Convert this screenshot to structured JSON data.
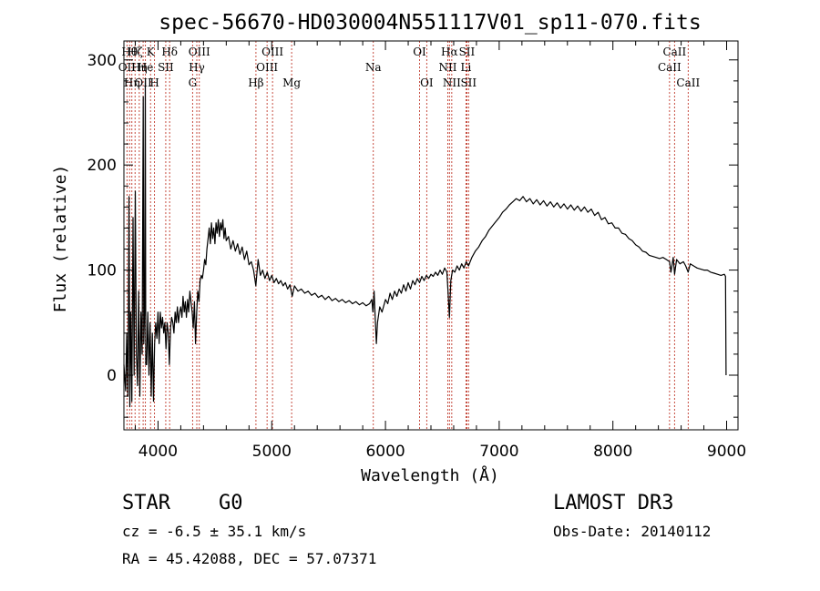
{
  "chart_data": {
    "type": "line",
    "title": "spec-56670-HD030004N551117V01_sp11-070.fits",
    "xlabel": "Wavelength (Å)",
    "ylabel": "Flux (relative)",
    "xlim": [
      3700,
      9100
    ],
    "ylim": [
      -52,
      318
    ],
    "xticks": [
      4000,
      5000,
      6000,
      7000,
      8000,
      9000
    ],
    "yticks": [
      0,
      100,
      200,
      300
    ],
    "series": [
      {
        "name": "flux",
        "points": [
          [
            3700,
            10
          ],
          [
            3715,
            -15
          ],
          [
            3725,
            40
          ],
          [
            3735,
            -20
          ],
          [
            3745,
            170
          ],
          [
            3752,
            -30
          ],
          [
            3760,
            60
          ],
          [
            3770,
            -25
          ],
          [
            3780,
            150
          ],
          [
            3790,
            0
          ],
          [
            3800,
            175
          ],
          [
            3810,
            20
          ],
          [
            3820,
            -10
          ],
          [
            3830,
            80
          ],
          [
            3840,
            -20
          ],
          [
            3850,
            60
          ],
          [
            3860,
            20
          ],
          [
            3870,
            265
          ],
          [
            3875,
            30
          ],
          [
            3882,
            60
          ],
          [
            3888,
            280
          ],
          [
            3892,
            10
          ],
          [
            3900,
            10
          ],
          [
            3910,
            60
          ],
          [
            3920,
            0
          ],
          [
            3930,
            50
          ],
          [
            3940,
            -20
          ],
          [
            3950,
            40
          ],
          [
            3960,
            -25
          ],
          [
            3970,
            30
          ],
          [
            3980,
            50
          ],
          [
            3990,
            35
          ],
          [
            4000,
            60
          ],
          [
            4010,
            30
          ],
          [
            4020,
            60
          ],
          [
            4030,
            45
          ],
          [
            4040,
            55
          ],
          [
            4050,
            40
          ],
          [
            4060,
            50
          ],
          [
            4070,
            25
          ],
          [
            4080,
            50
          ],
          [
            4090,
            40
          ],
          [
            4100,
            10
          ],
          [
            4110,
            45
          ],
          [
            4120,
            55
          ],
          [
            4130,
            50
          ],
          [
            4140,
            40
          ],
          [
            4150,
            60
          ],
          [
            4160,
            50
          ],
          [
            4170,
            65
          ],
          [
            4180,
            50
          ],
          [
            4190,
            60
          ],
          [
            4200,
            65
          ],
          [
            4210,
            55
          ],
          [
            4220,
            75
          ],
          [
            4230,
            60
          ],
          [
            4240,
            70
          ],
          [
            4250,
            55
          ],
          [
            4260,
            72
          ],
          [
            4270,
            60
          ],
          [
            4280,
            80
          ],
          [
            4290,
            70
          ],
          [
            4300,
            60
          ],
          [
            4310,
            45
          ],
          [
            4320,
            70
          ],
          [
            4330,
            30
          ],
          [
            4340,
            60
          ],
          [
            4350,
            80
          ],
          [
            4360,
            70
          ],
          [
            4370,
            90
          ],
          [
            4380,
            95
          ],
          [
            4390,
            92
          ],
          [
            4400,
            100
          ],
          [
            4410,
            110
          ],
          [
            4420,
            105
          ],
          [
            4430,
            120
          ],
          [
            4440,
            130
          ],
          [
            4450,
            140
          ],
          [
            4460,
            125
          ],
          [
            4470,
            145
          ],
          [
            4480,
            130
          ],
          [
            4490,
            140
          ],
          [
            4500,
            125
          ],
          [
            4510,
            145
          ],
          [
            4520,
            135
          ],
          [
            4530,
            148
          ],
          [
            4540,
            132
          ],
          [
            4550,
            145
          ],
          [
            4560,
            138
          ],
          [
            4570,
            148
          ],
          [
            4580,
            130
          ],
          [
            4590,
            140
          ],
          [
            4600,
            128
          ],
          [
            4620,
            132
          ],
          [
            4640,
            120
          ],
          [
            4660,
            128
          ],
          [
            4680,
            118
          ],
          [
            4700,
            125
          ],
          [
            4720,
            115
          ],
          [
            4740,
            122
          ],
          [
            4760,
            110
          ],
          [
            4780,
            118
          ],
          [
            4800,
            105
          ],
          [
            4820,
            108
          ],
          [
            4840,
            100
          ],
          [
            4860,
            85
          ],
          [
            4880,
            110
          ],
          [
            4900,
            95
          ],
          [
            4920,
            100
          ],
          [
            4940,
            92
          ],
          [
            4960,
            98
          ],
          [
            4980,
            90
          ],
          [
            5000,
            95
          ],
          [
            5020,
            88
          ],
          [
            5040,
            92
          ],
          [
            5060,
            87
          ],
          [
            5080,
            90
          ],
          [
            5100,
            85
          ],
          [
            5120,
            88
          ],
          [
            5140,
            82
          ],
          [
            5160,
            86
          ],
          [
            5180,
            75
          ],
          [
            5200,
            85
          ],
          [
            5230,
            80
          ],
          [
            5260,
            82
          ],
          [
            5290,
            78
          ],
          [
            5320,
            80
          ],
          [
            5350,
            76
          ],
          [
            5380,
            78
          ],
          [
            5410,
            74
          ],
          [
            5440,
            76
          ],
          [
            5470,
            72
          ],
          [
            5500,
            75
          ],
          [
            5530,
            71
          ],
          [
            5560,
            73
          ],
          [
            5590,
            70
          ],
          [
            5620,
            72
          ],
          [
            5650,
            69
          ],
          [
            5680,
            71
          ],
          [
            5710,
            68
          ],
          [
            5740,
            70
          ],
          [
            5770,
            67
          ],
          [
            5800,
            69
          ],
          [
            5830,
            66
          ],
          [
            5860,
            68
          ],
          [
            5880,
            72
          ],
          [
            5890,
            60
          ],
          [
            5900,
            80
          ],
          [
            5910,
            55
          ],
          [
            5920,
            30
          ],
          [
            5930,
            50
          ],
          [
            5950,
            65
          ],
          [
            5970,
            60
          ],
          [
            6000,
            72
          ],
          [
            6020,
            68
          ],
          [
            6040,
            78
          ],
          [
            6060,
            72
          ],
          [
            6080,
            80
          ],
          [
            6100,
            75
          ],
          [
            6120,
            82
          ],
          [
            6140,
            78
          ],
          [
            6160,
            86
          ],
          [
            6180,
            80
          ],
          [
            6200,
            88
          ],
          [
            6220,
            82
          ],
          [
            6240,
            90
          ],
          [
            6260,
            86
          ],
          [
            6280,
            92
          ],
          [
            6300,
            88
          ],
          [
            6320,
            94
          ],
          [
            6340,
            90
          ],
          [
            6360,
            95
          ],
          [
            6380,
            92
          ],
          [
            6400,
            96
          ],
          [
            6420,
            94
          ],
          [
            6440,
            98
          ],
          [
            6460,
            95
          ],
          [
            6480,
            100
          ],
          [
            6500,
            96
          ],
          [
            6520,
            102
          ],
          [
            6540,
            98
          ],
          [
            6550,
            80
          ],
          [
            6563,
            55
          ],
          [
            6575,
            90
          ],
          [
            6590,
            100
          ],
          [
            6610,
            98
          ],
          [
            6630,
            104
          ],
          [
            6650,
            100
          ],
          [
            6670,
            106
          ],
          [
            6690,
            102
          ],
          [
            6710,
            108
          ],
          [
            6730,
            104
          ],
          [
            6760,
            112
          ],
          [
            6790,
            118
          ],
          [
            6820,
            122
          ],
          [
            6850,
            128
          ],
          [
            6880,
            132
          ],
          [
            6910,
            138
          ],
          [
            6940,
            142
          ],
          [
            6970,
            146
          ],
          [
            7000,
            150
          ],
          [
            7030,
            155
          ],
          [
            7060,
            158
          ],
          [
            7090,
            162
          ],
          [
            7120,
            165
          ],
          [
            7150,
            168
          ],
          [
            7180,
            166
          ],
          [
            7210,
            170
          ],
          [
            7240,
            165
          ],
          [
            7270,
            168
          ],
          [
            7300,
            163
          ],
          [
            7330,
            167
          ],
          [
            7360,
            162
          ],
          [
            7390,
            166
          ],
          [
            7420,
            161
          ],
          [
            7450,
            165
          ],
          [
            7480,
            160
          ],
          [
            7510,
            164
          ],
          [
            7540,
            159
          ],
          [
            7570,
            163
          ],
          [
            7600,
            158
          ],
          [
            7630,
            162
          ],
          [
            7660,
            157
          ],
          [
            7690,
            161
          ],
          [
            7720,
            156
          ],
          [
            7750,
            160
          ],
          [
            7780,
            155
          ],
          [
            7810,
            158
          ],
          [
            7840,
            152
          ],
          [
            7870,
            155
          ],
          [
            7900,
            148
          ],
          [
            7930,
            150
          ],
          [
            7960,
            144
          ],
          [
            7990,
            145
          ],
          [
            8020,
            140
          ],
          [
            8050,
            140
          ],
          [
            8080,
            135
          ],
          [
            8110,
            134
          ],
          [
            8140,
            130
          ],
          [
            8170,
            128
          ],
          [
            8200,
            124
          ],
          [
            8230,
            122
          ],
          [
            8260,
            118
          ],
          [
            8290,
            117
          ],
          [
            8320,
            114
          ],
          [
            8350,
            113
          ],
          [
            8380,
            112
          ],
          [
            8410,
            111
          ],
          [
            8440,
            112
          ],
          [
            8470,
            110
          ],
          [
            8498,
            108
          ],
          [
            8510,
            98
          ],
          [
            8530,
            112
          ],
          [
            8542,
            96
          ],
          [
            8560,
            110
          ],
          [
            8590,
            106
          ],
          [
            8620,
            108
          ],
          [
            8640,
            104
          ],
          [
            8662,
            98
          ],
          [
            8680,
            106
          ],
          [
            8710,
            104
          ],
          [
            8740,
            102
          ],
          [
            8770,
            101
          ],
          [
            8800,
            100
          ],
          [
            8830,
            100
          ],
          [
            8860,
            98
          ],
          [
            8890,
            97
          ],
          [
            8920,
            96
          ],
          [
            8950,
            95
          ],
          [
            8980,
            96
          ],
          [
            8990,
            94
          ],
          [
            8995,
            0
          ]
        ]
      }
    ],
    "spectral_lines": [
      {
        "wave": 3727,
        "label": "OII",
        "row": 1
      },
      {
        "wave": 3750,
        "label": "Hθ",
        "row": 0
      },
      {
        "wave": 3770,
        "label": "Hη",
        "row": 2
      },
      {
        "wave": 3798,
        "label": "Hζ",
        "row": 0
      },
      {
        "wave": 3835,
        "label": "Hη",
        "row": 1
      },
      {
        "wave": 3869,
        "label": "OII",
        "row": 2
      },
      {
        "wave": 3889,
        "label": "He",
        "row": 1
      },
      {
        "wave": 3934,
        "label": "K",
        "row": 0
      },
      {
        "wave": 3969,
        "label": "H",
        "row": 2
      },
      {
        "wave": 4068,
        "label": "SII",
        "row": 1
      },
      {
        "wave": 4102,
        "label": "Hδ",
        "row": 0
      },
      {
        "wave": 4304,
        "label": "G",
        "row": 2
      },
      {
        "wave": 4341,
        "label": "Hγ",
        "row": 1
      },
      {
        "wave": 4363,
        "label": "OIII",
        "row": 0
      },
      {
        "wave": 4861,
        "label": "Hβ",
        "row": 2
      },
      {
        "wave": 4959,
        "label": "OIII",
        "row": 1
      },
      {
        "wave": 5007,
        "label": "OIII",
        "row": 0
      },
      {
        "wave": 5175,
        "label": "Mg",
        "row": 2
      },
      {
        "wave": 5893,
        "label": "Na",
        "row": 1
      },
      {
        "wave": 6300,
        "label": "OI",
        "row": 0
      },
      {
        "wave": 6363,
        "label": "OI",
        "row": 2
      },
      {
        "wave": 6548,
        "label": "NII",
        "row": 1
      },
      {
        "wave": 6563,
        "label": "Hα",
        "row": 0
      },
      {
        "wave": 6583,
        "label": "NII",
        "row": 2
      },
      {
        "wave": 6708,
        "label": "Li",
        "row": 1
      },
      {
        "wave": 6716,
        "label": "SII",
        "row": 0
      },
      {
        "wave": 6731,
        "label": "SII",
        "row": 2
      },
      {
        "wave": 8498,
        "label": "CaII",
        "row": 1
      },
      {
        "wave": 8542,
        "label": "CaII",
        "row": 0
      },
      {
        "wave": 8662,
        "label": "CaII",
        "row": 2
      }
    ]
  },
  "info": {
    "object_class": "STAR",
    "subclass": "G0",
    "survey": "LAMOST DR3",
    "redshift": "cz = -6.5 ± 35.1 km/s",
    "obs_date": "Obs-Date: 20140112",
    "coords": "RA =  45.42088, DEC =  57.07371"
  }
}
